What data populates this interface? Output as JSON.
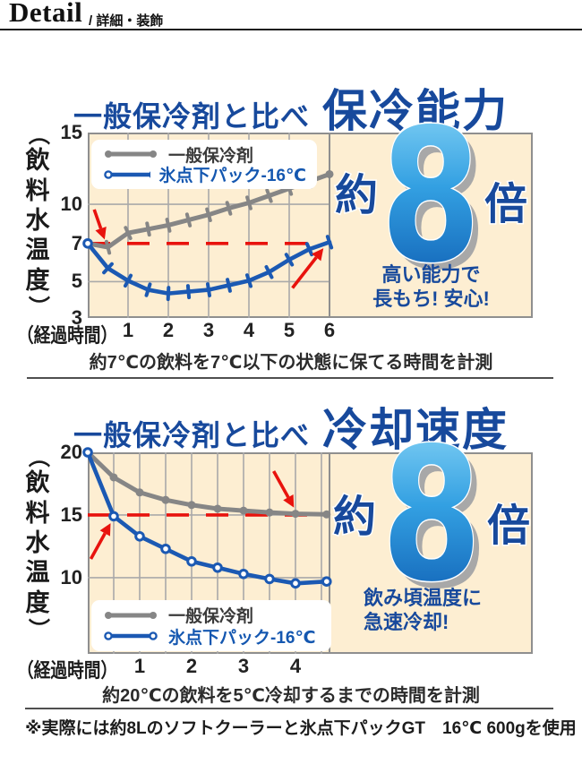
{
  "header": {
    "title": "Detail",
    "subtitle": "/ 詳細・装飾"
  },
  "legend": {
    "series1": "一般保冷剤",
    "series2": "氷点下パック-16℃"
  },
  "sections": [
    {
      "title_prefix": "一般保冷剤と比べ",
      "title_main": "保冷能力",
      "badge": {
        "prefix": "約",
        "number": "8",
        "suffix": "倍"
      },
      "note_lines": [
        "高い能力で",
        "長もち! 安心!"
      ],
      "caption": "約7℃の飲料を7℃以下の状態に保てる時間を計測"
    },
    {
      "title_prefix": "一般保冷剤と比べ",
      "title_main": "冷却速度",
      "badge": {
        "prefix": "約",
        "number": "8",
        "suffix": "倍"
      },
      "note_lines": [
        "飲み頃温度に",
        "急速冷却!"
      ],
      "caption": "約20℃の飲料を5℃冷却するまでの時間を計測"
    }
  ],
  "footnote": "※実際には約8Lのソフトクーラーと氷点下パックGT　16℃ 600gを使用",
  "colors": {
    "accent_blue": "#17499c",
    "line_blue": "#1b59b3",
    "line_gray": "#868686",
    "red": "#e8130d",
    "panel_bg": "#fdeed2",
    "badge_gradient_top": "#8fd9f8",
    "badge_gradient_mid": "#33a0e2",
    "badge_gradient_bottom": "#0b57ae"
  },
  "chart_data": [
    {
      "type": "line",
      "title": "一般保冷剤と比べ 保冷能力",
      "xlabel": "（経過時間）",
      "ylabel": "（飲料水温度）",
      "x_ticks": [
        1,
        2,
        3,
        4,
        5,
        6
      ],
      "y_ticks": [
        15,
        10,
        7,
        5,
        3
      ],
      "xlim": [
        0,
        6
      ],
      "ylim": [
        3,
        15
      ],
      "grid_x": [
        1,
        2,
        3,
        4,
        5
      ],
      "grid_y": [
        10,
        5
      ],
      "legend_position": "top-left",
      "reference_line": {
        "y": 7,
        "x_end": 5.75,
        "color": "#e8130d",
        "style": "dashed"
      },
      "series": [
        {
          "name": "一般保冷剤",
          "color": "#868686",
          "width": 5,
          "marker": "tick",
          "start_marker": "none",
          "end_marker": "dot",
          "x": [
            0,
            0.5,
            1,
            1.5,
            2,
            2.5,
            3,
            3.5,
            4,
            4.5,
            5,
            5.5,
            6
          ],
          "y": [
            7,
            6.8,
            7.8,
            8.1,
            8.4,
            8.8,
            9.2,
            9.7,
            10.1,
            10.6,
            11.1,
            11.6,
            12.1
          ]
        },
        {
          "name": "氷点下パック-16℃",
          "color": "#1b59b3",
          "width": 4.6,
          "marker": "tick",
          "start_marker": "ring",
          "end_marker": "tick",
          "x": [
            0,
            0.5,
            1,
            1.5,
            2,
            2.5,
            3,
            3.5,
            4,
            4.5,
            5,
            5.5,
            6
          ],
          "y": [
            7,
            5.7,
            5.05,
            4.55,
            4.35,
            4.45,
            4.55,
            4.8,
            5.05,
            5.5,
            6.15,
            6.7,
            7.1
          ]
        }
      ],
      "arrows": [
        {
          "from": [
            0.16,
            9.6
          ],
          "to": [
            0.42,
            7.3
          ]
        },
        {
          "from": [
            5.08,
            4.65
          ],
          "to": [
            5.85,
            6.75
          ]
        }
      ],
      "annotation_badge": "約8倍"
    },
    {
      "type": "line",
      "title": "一般保冷剤と比べ 冷却速度",
      "xlabel": "（経過時間）",
      "ylabel": "（飲料水温度）",
      "x_ticks": [
        1,
        2,
        3,
        4
      ],
      "y_ticks": [
        20,
        15,
        10
      ],
      "xlim": [
        0,
        4.65
      ],
      "ylim": [
        8,
        20
      ],
      "grid_x": [
        0.5,
        1,
        1.5,
        2,
        2.5,
        3,
        3.5,
        4,
        4.5
      ],
      "grid_y": [
        15,
        10
      ],
      "legend_position": "bottom-left",
      "reference_line": {
        "y": 15,
        "x_end": 4.4,
        "color": "#e8130d",
        "style": "dashed"
      },
      "series": [
        {
          "name": "一般保冷剤",
          "color": "#868686",
          "width": 5,
          "marker": "dot",
          "start_marker": "none",
          "end_marker": "dot",
          "x": [
            0,
            0.5,
            1,
            1.5,
            2,
            2.5,
            3,
            3.5,
            4,
            4.6
          ],
          "y": [
            20,
            18.0,
            16.8,
            16.2,
            15.8,
            15.5,
            15.35,
            15.2,
            15.1,
            15.05
          ]
        },
        {
          "name": "氷点下パック-16℃",
          "color": "#1b59b3",
          "width": 4.6,
          "marker": "ring",
          "start_marker": "ring",
          "end_marker": "ring",
          "x": [
            0,
            0.5,
            1,
            1.5,
            2,
            2.5,
            3,
            3.5,
            4,
            4.6
          ],
          "y": [
            20,
            14.9,
            13.3,
            12.3,
            11.3,
            10.8,
            10.3,
            9.9,
            9.55,
            9.7
          ]
        }
      ],
      "arrows": [
        {
          "from": [
            0.06,
            11.5
          ],
          "to": [
            0.44,
            14.35
          ]
        },
        {
          "from": [
            3.58,
            18.5
          ],
          "to": [
            3.97,
            15.6
          ]
        }
      ],
      "annotation_badge": "約8倍"
    }
  ]
}
